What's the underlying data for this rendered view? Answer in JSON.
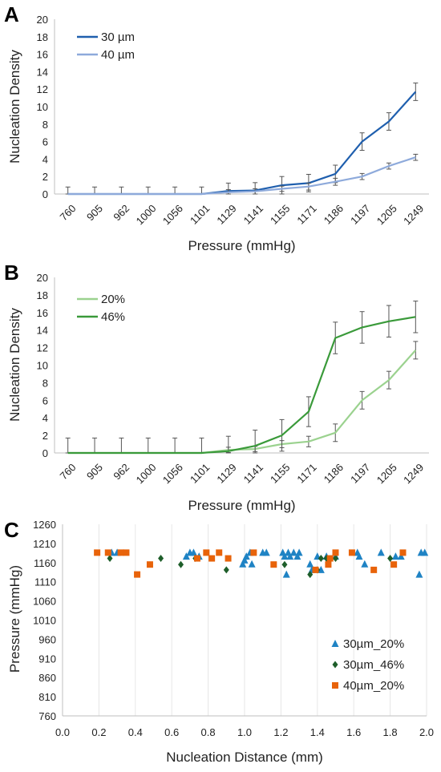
{
  "chart_data": [
    {
      "panel": "A",
      "type": "line",
      "xlabel": "Pressure (mmHg)",
      "ylabel": "Nucleation Density",
      "ylim": [
        0,
        20
      ],
      "yticks": [
        0,
        2,
        4,
        6,
        8,
        10,
        12,
        14,
        16,
        18,
        20
      ],
      "categories": [
        "760",
        "905",
        "962",
        "1000",
        "1056",
        "1101",
        "1129",
        "1141",
        "1155",
        "1171",
        "1186",
        "1197",
        "1205",
        "1249"
      ],
      "legend_position": "top-left",
      "series": [
        {
          "name": "30 µm",
          "color": "#1f5fae",
          "values": [
            0,
            0,
            0,
            0,
            0,
            0,
            0.35,
            0.4,
            1.0,
            1.25,
            2.3,
            6.0,
            8.3,
            11.7
          ],
          "errors": [
            0.8,
            0.8,
            0.8,
            0.8,
            0.8,
            0.8,
            0.9,
            0.9,
            1.0,
            1.0,
            1.0,
            1.0,
            1.0,
            1.0
          ]
        },
        {
          "name": "40 µm",
          "color": "#8eaadb",
          "values": [
            0,
            0,
            0,
            0,
            0,
            0,
            0.2,
            0.3,
            0.6,
            0.85,
            1.4,
            2.0,
            3.2,
            4.2
          ],
          "errors": [
            0,
            0,
            0,
            0,
            0,
            0,
            0.3,
            0.3,
            0.3,
            0.4,
            0.4,
            0.35,
            0.35,
            0.35
          ]
        }
      ]
    },
    {
      "panel": "B",
      "type": "line",
      "xlabel": "Pressure (mmHg)",
      "ylabel": "Nucleation Density",
      "ylim": [
        0,
        20
      ],
      "yticks": [
        0,
        2,
        4,
        6,
        8,
        10,
        12,
        14,
        16,
        18,
        20
      ],
      "categories": [
        "760",
        "905",
        "962",
        "1000",
        "1056",
        "1101",
        "1129",
        "1141",
        "1155",
        "1171",
        "1186",
        "1197",
        "1205",
        "1249"
      ],
      "legend_position": "top-left",
      "series": [
        {
          "name": "20%",
          "color": "#9bd28f",
          "values": [
            0,
            0,
            0,
            0,
            0,
            0,
            0.35,
            0.45,
            1.0,
            1.3,
            2.3,
            6.0,
            8.3,
            11.7
          ],
          "errors": [
            0,
            0,
            0,
            0,
            0,
            0,
            0.3,
            0.3,
            0.4,
            0.6,
            1.0,
            1.0,
            1.0,
            1.0
          ]
        },
        {
          "name": "46%",
          "color": "#3a9a3a",
          "values": [
            0,
            0,
            0,
            0,
            0,
            0,
            0.2,
            0.8,
            2.0,
            4.7,
            13.1,
            14.3,
            15.0,
            15.5
          ],
          "errors": [
            1.7,
            1.7,
            1.7,
            1.7,
            1.7,
            1.7,
            1.7,
            1.8,
            1.8,
            1.7,
            1.8,
            1.8,
            1.8,
            1.8
          ]
        }
      ]
    },
    {
      "panel": "C",
      "type": "scatter",
      "xlabel": "Nucleation Distance (mm)",
      "ylabel": "Pressure (mmHg)",
      "xlim": [
        0,
        2
      ],
      "ylim": [
        760,
        1260
      ],
      "xticks": [
        "0.0",
        "0.2",
        "0.4",
        "0.6",
        "0.8",
        "1.0",
        "1.2",
        "1.4",
        "1.6",
        "1.8",
        "2.0"
      ],
      "yticks": [
        760,
        810,
        860,
        910,
        960,
        1010,
        1060,
        1110,
        1160,
        1210,
        1260
      ],
      "gridlines_x": true,
      "legend_position": "bottom-right",
      "series": [
        {
          "name": "30µm_20%",
          "color": "#1f83c4",
          "marker": "triangle",
          "points": [
            [
              0.27,
              1186
            ],
            [
              0.3,
              1186
            ],
            [
              0.68,
              1176
            ],
            [
              0.7,
              1186
            ],
            [
              0.72,
              1186
            ],
            [
              0.75,
              1176
            ],
            [
              0.99,
              1156
            ],
            [
              1.0,
              1166
            ],
            [
              1.01,
              1176
            ],
            [
              1.03,
              1186
            ],
            [
              1.04,
              1156
            ],
            [
              1.1,
              1186
            ],
            [
              1.12,
              1186
            ],
            [
              1.21,
              1186
            ],
            [
              1.22,
              1176
            ],
            [
              1.23,
              1129
            ],
            [
              1.24,
              1186
            ],
            [
              1.25,
              1176
            ],
            [
              1.27,
              1186
            ],
            [
              1.29,
              1176
            ],
            [
              1.3,
              1186
            ],
            [
              1.36,
              1156
            ],
            [
              1.37,
              1141
            ],
            [
              1.4,
              1176
            ],
            [
              1.42,
              1141
            ],
            [
              1.45,
              1176
            ],
            [
              1.5,
              1176
            ],
            [
              1.62,
              1186
            ],
            [
              1.63,
              1176
            ],
            [
              1.66,
              1156
            ],
            [
              1.75,
              1186
            ],
            [
              1.83,
              1176
            ],
            [
              1.86,
              1176
            ],
            [
              1.96,
              1129
            ],
            [
              1.97,
              1186
            ],
            [
              1.99,
              1186
            ]
          ]
        },
        {
          "name": "30µm_46%",
          "color": "#1e5e2a",
          "marker": "diamond",
          "points": [
            [
              0.26,
              1171
            ],
            [
              0.54,
              1171
            ],
            [
              0.65,
              1155
            ],
            [
              0.73,
              1171
            ],
            [
              0.9,
              1141
            ],
            [
              1.22,
              1155
            ],
            [
              1.36,
              1129
            ],
            [
              1.4,
              1141
            ],
            [
              1.42,
              1171
            ],
            [
              1.45,
              1171
            ],
            [
              1.5,
              1171
            ],
            [
              1.8,
              1171
            ]
          ]
        },
        {
          "name": "40µm_20%",
          "color": "#e8630a",
          "marker": "square",
          "points": [
            [
              0.19,
              1186
            ],
            [
              0.25,
              1186
            ],
            [
              0.32,
              1186
            ],
            [
              0.35,
              1186
            ],
            [
              0.41,
              1129
            ],
            [
              0.48,
              1155
            ],
            [
              0.74,
              1171
            ],
            [
              0.79,
              1186
            ],
            [
              0.82,
              1171
            ],
            [
              0.86,
              1186
            ],
            [
              0.91,
              1171
            ],
            [
              1.05,
              1186
            ],
            [
              1.16,
              1155
            ],
            [
              1.39,
              1141
            ],
            [
              1.46,
              1155
            ],
            [
              1.47,
              1171
            ],
            [
              1.5,
              1186
            ],
            [
              1.59,
              1186
            ],
            [
              1.71,
              1141
            ],
            [
              1.82,
              1155
            ],
            [
              1.87,
              1186
            ]
          ]
        }
      ]
    }
  ]
}
